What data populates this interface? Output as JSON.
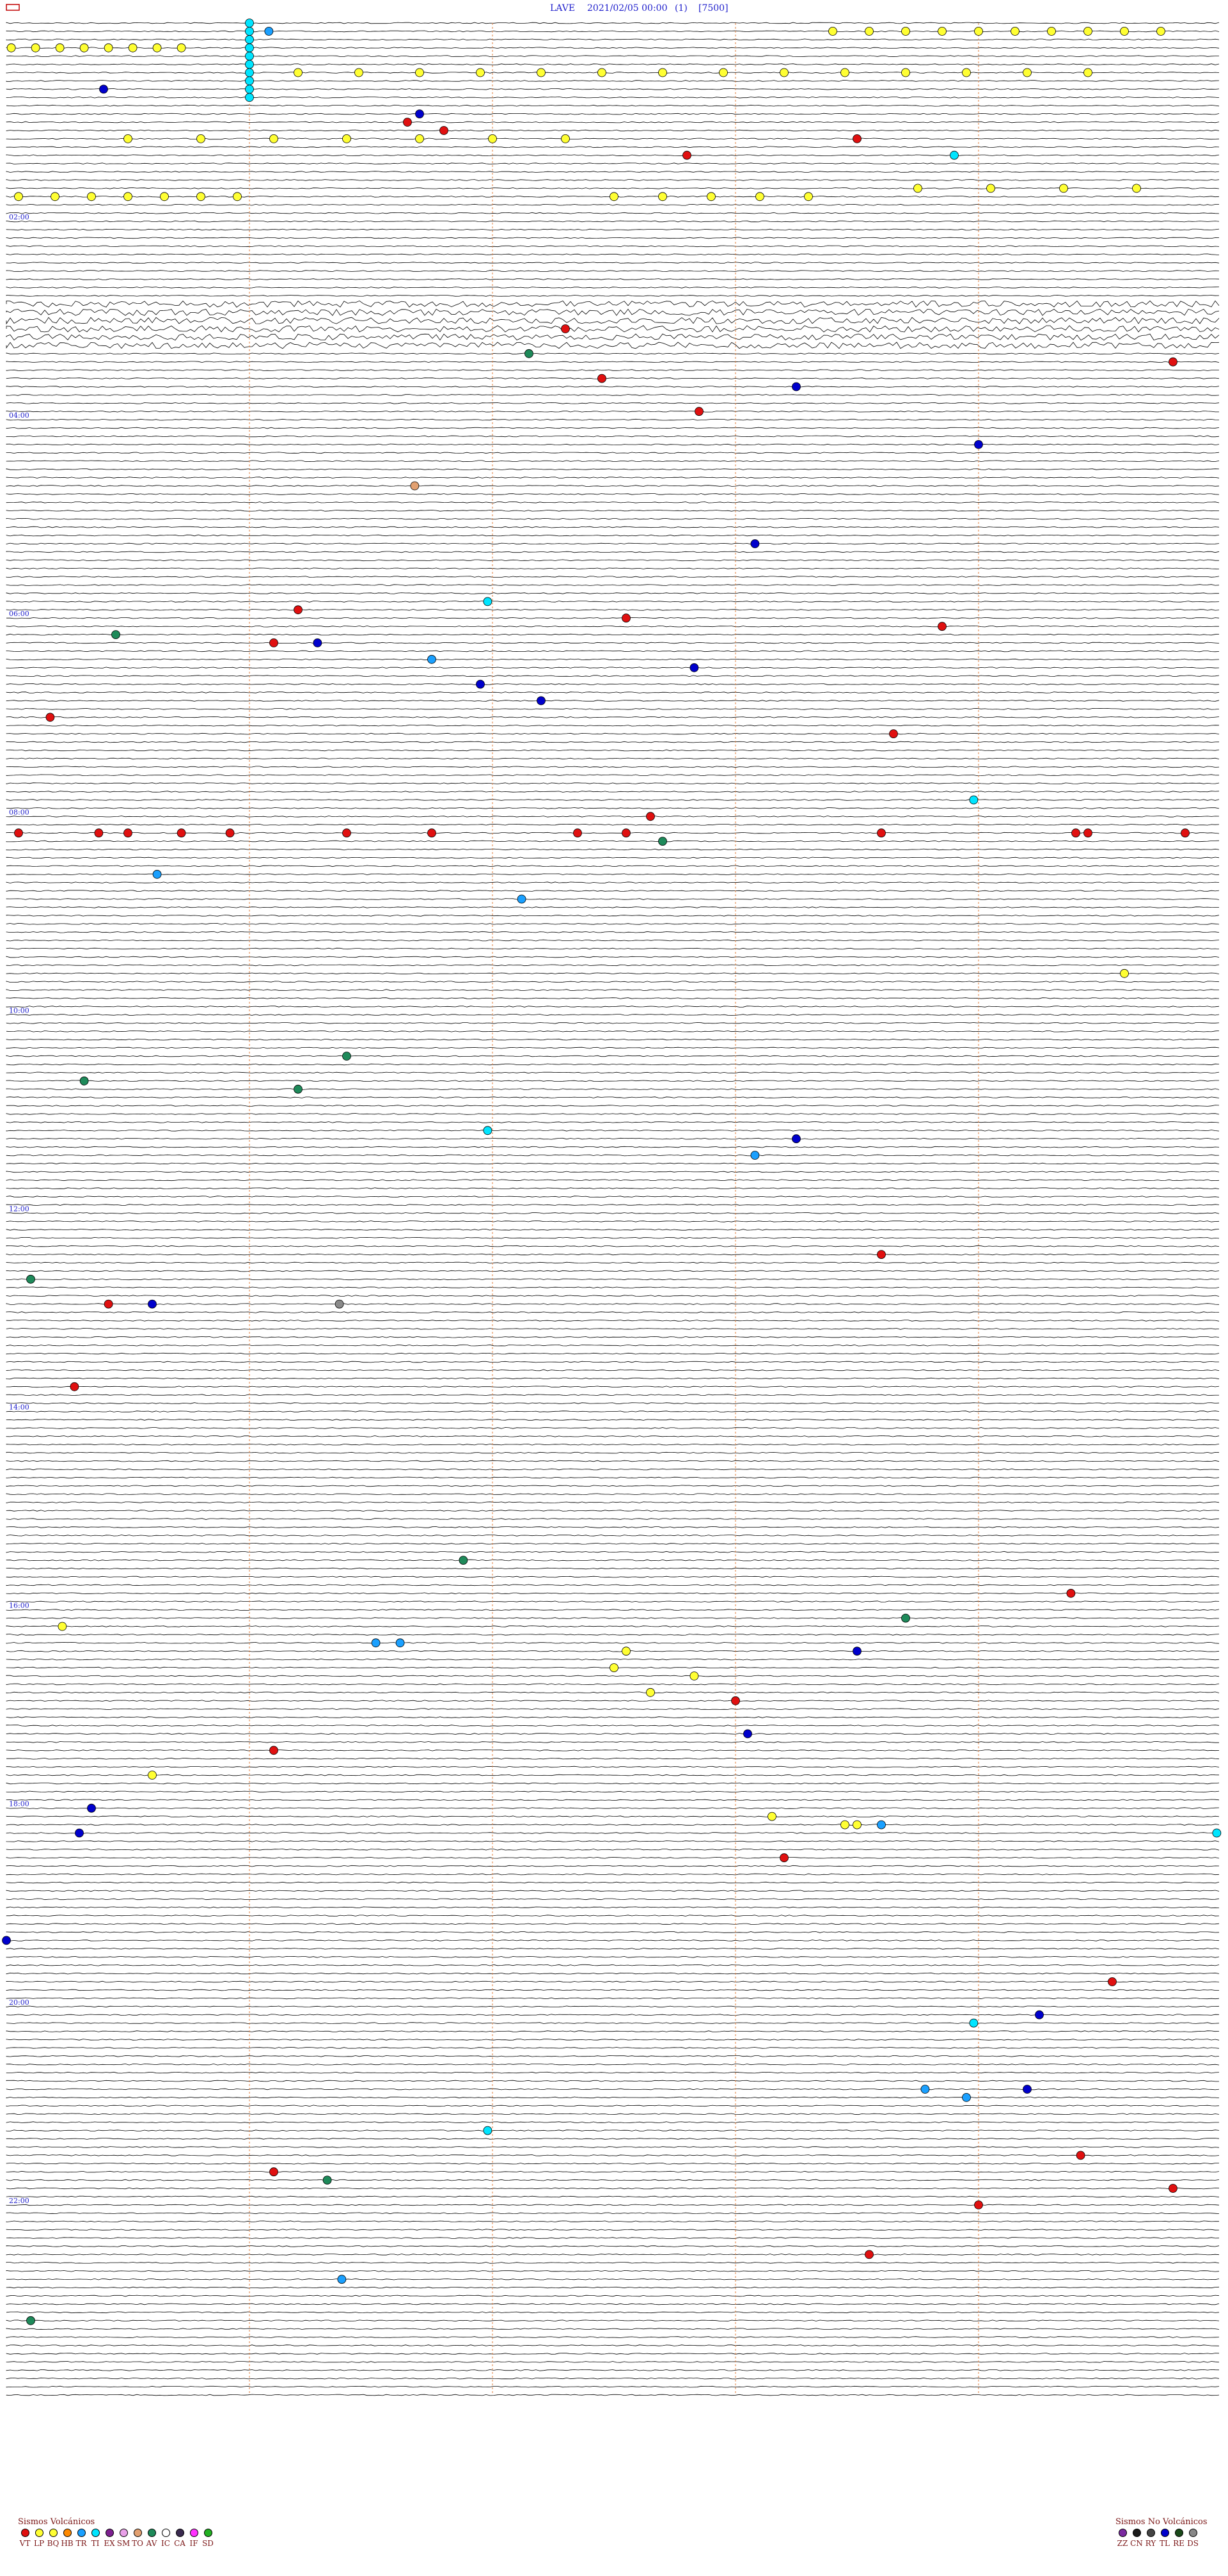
{
  "header": {
    "station": "LAVE",
    "datetime": "2021/02/05 00:00",
    "channel": "(1)",
    "scale": "[7500]"
  },
  "chart_data": {
    "type": "scatter",
    "kind": "helicorder",
    "total_traces": 288,
    "minutes_per_trace": 5,
    "hour_labels": [
      "02:00",
      "04:00",
      "06:00",
      "08:00",
      "10:00",
      "12:00",
      "14:00",
      "16:00",
      "18:00",
      "20:00",
      "22:00"
    ],
    "hour_label_traces": [
      24,
      48,
      72,
      96,
      120,
      144,
      168,
      192,
      216,
      240,
      264
    ],
    "event_types": {
      "VT": "#e01010",
      "LP": "#ffff33",
      "BQ": "#ffff33",
      "HB": "#ff8a00",
      "TR": "#1aa0ff",
      "TI": "#00e5ff",
      "EX": "#7d2090",
      "SM": "#e8a0e8",
      "TO": "#e2a070",
      "AV": "#1e8a5a",
      "IC": "#ffffff",
      "CA": "#3a2a50",
      "IF": "#ff33ff",
      "SD": "#22b022",
      "ZZ": "#7a2aa0",
      "CN": "#1a1a1a",
      "RY": "#444444",
      "TL": "#0000cc",
      "RE": "#1a4a1a",
      "DS": "#888888",
      "GRAY": "#8a8a8a",
      "BLUE": "#0000cc"
    },
    "events": [
      {
        "trace": 0,
        "minute": 1.0,
        "type": "TI"
      },
      {
        "trace": 1,
        "minute": 1.0,
        "type": "TI"
      },
      {
        "trace": 2,
        "minute": 1.0,
        "type": "TI"
      },
      {
        "trace": 3,
        "minute": 1.0,
        "type": "TI"
      },
      {
        "trace": 4,
        "minute": 1.0,
        "type": "TI"
      },
      {
        "trace": 5,
        "minute": 1.0,
        "type": "TI"
      },
      {
        "trace": 6,
        "minute": 1.0,
        "type": "TI"
      },
      {
        "trace": 7,
        "minute": 1.0,
        "type": "TI"
      },
      {
        "trace": 8,
        "minute": 1.0,
        "type": "TI"
      },
      {
        "trace": 9,
        "minute": 1.0,
        "type": "TI"
      },
      {
        "trace": 1,
        "minute": 3.4,
        "type": "LP"
      },
      {
        "trace": 1,
        "minute": 3.55,
        "type": "LP"
      },
      {
        "trace": 1,
        "minute": 3.7,
        "type": "LP"
      },
      {
        "trace": 1,
        "minute": 3.85,
        "type": "LP"
      },
      {
        "trace": 1,
        "minute": 4.0,
        "type": "LP"
      },
      {
        "trace": 1,
        "minute": 4.15,
        "type": "LP"
      },
      {
        "trace": 1,
        "minute": 4.3,
        "type": "LP"
      },
      {
        "trace": 1,
        "minute": 4.45,
        "type": "LP"
      },
      {
        "trace": 1,
        "minute": 4.6,
        "type": "LP"
      },
      {
        "trace": 1,
        "minute": 4.75,
        "type": "LP"
      },
      {
        "trace": 3,
        "minute": 0.02,
        "type": "LP"
      },
      {
        "trace": 3,
        "minute": 0.12,
        "type": "LP"
      },
      {
        "trace": 3,
        "minute": 0.22,
        "type": "LP"
      },
      {
        "trace": 3,
        "minute": 0.32,
        "type": "LP"
      },
      {
        "trace": 3,
        "minute": 0.42,
        "type": "LP"
      },
      {
        "trace": 3,
        "minute": 0.52,
        "type": "LP"
      },
      {
        "trace": 3,
        "minute": 0.62,
        "type": "LP"
      },
      {
        "trace": 3,
        "minute": 0.72,
        "type": "LP"
      },
      {
        "trace": 6,
        "minute": 1.2,
        "type": "LP"
      },
      {
        "trace": 6,
        "minute": 1.45,
        "type": "LP"
      },
      {
        "trace": 6,
        "minute": 1.7,
        "type": "LP"
      },
      {
        "trace": 6,
        "minute": 1.95,
        "type": "LP"
      },
      {
        "trace": 6,
        "minute": 2.2,
        "type": "LP"
      },
      {
        "trace": 6,
        "minute": 2.45,
        "type": "LP"
      },
      {
        "trace": 6,
        "minute": 2.7,
        "type": "LP"
      },
      {
        "trace": 6,
        "minute": 2.95,
        "type": "LP"
      },
      {
        "trace": 6,
        "minute": 3.2,
        "type": "LP"
      },
      {
        "trace": 6,
        "minute": 3.45,
        "type": "LP"
      },
      {
        "trace": 6,
        "minute": 3.7,
        "type": "LP"
      },
      {
        "trace": 6,
        "minute": 3.95,
        "type": "LP"
      },
      {
        "trace": 6,
        "minute": 4.2,
        "type": "LP"
      },
      {
        "trace": 6,
        "minute": 4.45,
        "type": "LP"
      },
      {
        "trace": 14,
        "minute": 0.5,
        "type": "LP"
      },
      {
        "trace": 14,
        "minute": 0.8,
        "type": "LP"
      },
      {
        "trace": 14,
        "minute": 1.1,
        "type": "LP"
      },
      {
        "trace": 14,
        "minute": 1.4,
        "type": "LP"
      },
      {
        "trace": 14,
        "minute": 1.7,
        "type": "LP"
      },
      {
        "trace": 14,
        "minute": 2.0,
        "type": "LP"
      },
      {
        "trace": 14,
        "minute": 2.3,
        "type": "LP"
      },
      {
        "trace": 21,
        "minute": 0.05,
        "type": "LP"
      },
      {
        "trace": 21,
        "minute": 0.2,
        "type": "LP"
      },
      {
        "trace": 21,
        "minute": 0.35,
        "type": "LP"
      },
      {
        "trace": 21,
        "minute": 0.5,
        "type": "LP"
      },
      {
        "trace": 21,
        "minute": 0.65,
        "type": "LP"
      },
      {
        "trace": 21,
        "minute": 0.8,
        "type": "LP"
      },
      {
        "trace": 21,
        "minute": 0.95,
        "type": "LP"
      },
      {
        "trace": 21,
        "minute": 2.5,
        "type": "LP"
      },
      {
        "trace": 21,
        "minute": 2.7,
        "type": "LP"
      },
      {
        "trace": 21,
        "minute": 2.9,
        "type": "LP"
      },
      {
        "trace": 21,
        "minute": 3.1,
        "type": "LP"
      },
      {
        "trace": 21,
        "minute": 3.3,
        "type": "LP"
      },
      {
        "trace": 20,
        "minute": 3.75,
        "type": "LP"
      },
      {
        "trace": 20,
        "minute": 4.05,
        "type": "LP"
      },
      {
        "trace": 20,
        "minute": 4.35,
        "type": "LP"
      },
      {
        "trace": 20,
        "minute": 4.65,
        "type": "LP"
      },
      {
        "trace": 1,
        "minute": 1.08,
        "type": "TR"
      },
      {
        "trace": 8,
        "minute": 0.4,
        "type": "BLUE"
      },
      {
        "trace": 11,
        "minute": 1.7,
        "type": "BLUE"
      },
      {
        "trace": 12,
        "minute": 1.65,
        "type": "VT"
      },
      {
        "trace": 13,
        "minute": 1.8,
        "type": "VT"
      },
      {
        "trace": 14,
        "minute": 3.5,
        "type": "VT"
      },
      {
        "trace": 16,
        "minute": 3.9,
        "type": "TI"
      },
      {
        "trace": 16,
        "minute": 2.8,
        "type": "VT"
      },
      {
        "trace": 37,
        "minute": 2.3,
        "type": "VT"
      },
      {
        "trace": 40,
        "minute": 2.15,
        "type": "AV"
      },
      {
        "trace": 41,
        "minute": 4.8,
        "type": "VT"
      },
      {
        "trace": 43,
        "minute": 2.45,
        "type": "VT"
      },
      {
        "trace": 44,
        "minute": 3.25,
        "type": "BLUE"
      },
      {
        "trace": 47,
        "minute": 2.85,
        "type": "VT"
      },
      {
        "trace": 51,
        "minute": 4.0,
        "type": "BLUE"
      },
      {
        "trace": 56,
        "minute": 1.68,
        "type": "TO"
      },
      {
        "trace": 63,
        "minute": 3.08,
        "type": "BLUE"
      },
      {
        "trace": 70,
        "minute": 1.98,
        "type": "TI"
      },
      {
        "trace": 71,
        "minute": 1.2,
        "type": "VT"
      },
      {
        "trace": 72,
        "minute": 2.55,
        "type": "VT"
      },
      {
        "trace": 73,
        "minute": 3.85,
        "type": "VT"
      },
      {
        "trace": 74,
        "minute": 0.45,
        "type": "AV"
      },
      {
        "trace": 75,
        "minute": 1.1,
        "type": "VT"
      },
      {
        "trace": 75,
        "minute": 1.28,
        "type": "BLUE"
      },
      {
        "trace": 77,
        "minute": 1.75,
        "type": "TR"
      },
      {
        "trace": 78,
        "minute": 2.83,
        "type": "BLUE"
      },
      {
        "trace": 80,
        "minute": 1.95,
        "type": "BLUE"
      },
      {
        "trace": 82,
        "minute": 2.2,
        "type": "BLUE"
      },
      {
        "trace": 84,
        "minute": 0.18,
        "type": "VT"
      },
      {
        "trace": 86,
        "minute": 3.65,
        "type": "VT"
      },
      {
        "trace": 94,
        "minute": 3.98,
        "type": "TI"
      },
      {
        "trace": 96,
        "minute": 2.65,
        "type": "VT"
      },
      {
        "trace": 98,
        "minute": 0.05,
        "type": "VT"
      },
      {
        "trace": 98,
        "minute": 0.38,
        "type": "VT"
      },
      {
        "trace": 98,
        "minute": 0.5,
        "type": "VT"
      },
      {
        "trace": 98,
        "minute": 0.72,
        "type": "VT"
      },
      {
        "trace": 98,
        "minute": 0.92,
        "type": "VT"
      },
      {
        "trace": 98,
        "minute": 1.4,
        "type": "VT"
      },
      {
        "trace": 98,
        "minute": 1.75,
        "type": "VT"
      },
      {
        "trace": 98,
        "minute": 2.35,
        "type": "VT"
      },
      {
        "trace": 98,
        "minute": 2.55,
        "type": "VT"
      },
      {
        "trace": 98,
        "minute": 3.6,
        "type": "VT"
      },
      {
        "trace": 98,
        "minute": 4.4,
        "type": "VT"
      },
      {
        "trace": 98,
        "minute": 4.45,
        "type": "VT"
      },
      {
        "trace": 98,
        "minute": 4.85,
        "type": "VT"
      },
      {
        "trace": 99,
        "minute": 2.7,
        "type": "AV"
      },
      {
        "trace": 103,
        "minute": 0.62,
        "type": "TR"
      },
      {
        "trace": 106,
        "minute": 2.12,
        "type": "TR"
      },
      {
        "trace": 115,
        "minute": 4.6,
        "type": "LP"
      },
      {
        "trace": 125,
        "minute": 1.4,
        "type": "AV"
      },
      {
        "trace": 128,
        "minute": 0.32,
        "type": "AV"
      },
      {
        "trace": 129,
        "minute": 1.2,
        "type": "AV"
      },
      {
        "trace": 134,
        "minute": 1.98,
        "type": "TI"
      },
      {
        "trace": 135,
        "minute": 3.25,
        "type": "BLUE"
      },
      {
        "trace": 137,
        "minute": 3.08,
        "type": "TR"
      },
      {
        "trace": 149,
        "minute": 3.6,
        "type": "VT"
      },
      {
        "trace": 152,
        "minute": 0.1,
        "type": "AV"
      },
      {
        "trace": 155,
        "minute": 0.6,
        "type": "BLUE"
      },
      {
        "trace": 155,
        "minute": 0.42,
        "type": "VT"
      },
      {
        "trace": 155,
        "minute": 1.37,
        "type": "GRAY"
      },
      {
        "trace": 165,
        "minute": 0.28,
        "type": "VT"
      },
      {
        "trace": 186,
        "minute": 1.88,
        "type": "AV"
      },
      {
        "trace": 190,
        "minute": 4.38,
        "type": "VT"
      },
      {
        "trace": 193,
        "minute": 3.7,
        "type": "AV"
      },
      {
        "trace": 194,
        "minute": 0.23,
        "type": "LP"
      },
      {
        "trace": 196,
        "minute": 1.52,
        "type": "TR"
      },
      {
        "trace": 196,
        "minute": 1.62,
        "type": "TR"
      },
      {
        "trace": 197,
        "minute": 2.55,
        "type": "LP"
      },
      {
        "trace": 197,
        "minute": 3.5,
        "type": "BLUE"
      },
      {
        "trace": 199,
        "minute": 2.5,
        "type": "LP"
      },
      {
        "trace": 200,
        "minute": 2.83,
        "type": "LP"
      },
      {
        "trace": 202,
        "minute": 2.65,
        "type": "LP"
      },
      {
        "trace": 203,
        "minute": 3.0,
        "type": "VT"
      },
      {
        "trace": 207,
        "minute": 3.05,
        "type": "BLUE"
      },
      {
        "trace": 209,
        "minute": 1.1,
        "type": "VT"
      },
      {
        "trace": 212,
        "minute": 0.6,
        "type": "LP"
      },
      {
        "trace": 216,
        "minute": 0.35,
        "type": "BLUE"
      },
      {
        "trace": 217,
        "minute": 3.15,
        "type": "LP"
      },
      {
        "trace": 218,
        "minute": 3.5,
        "type": "LP"
      },
      {
        "trace": 218,
        "minute": 3.6,
        "type": "TR"
      },
      {
        "trace": 218,
        "minute": 3.45,
        "type": "LP"
      },
      {
        "trace": 219,
        "minute": 0.3,
        "type": "BLUE"
      },
      {
        "trace": 219,
        "minute": 4.98,
        "type": "TI"
      },
      {
        "trace": 222,
        "minute": 3.2,
        "type": "VT"
      },
      {
        "trace": 237,
        "minute": 4.55,
        "type": "VT"
      },
      {
        "trace": 241,
        "minute": 4.25,
        "type": "BLUE"
      },
      {
        "trace": 242,
        "minute": 3.98,
        "type": "TI"
      },
      {
        "trace": 250,
        "minute": 4.2,
        "type": "BLUE"
      },
      {
        "trace": 250,
        "minute": 3.78,
        "type": "TR"
      },
      {
        "trace": 251,
        "minute": 3.95,
        "type": "TR"
      },
      {
        "trace": 255,
        "minute": 1.98,
        "type": "TI"
      },
      {
        "trace": 260,
        "minute": 1.1,
        "type": "VT"
      },
      {
        "trace": 261,
        "minute": 1.32,
        "type": "AV"
      },
      {
        "trace": 258,
        "minute": 4.42,
        "type": "VT"
      },
      {
        "trace": 262,
        "minute": 4.8,
        "type": "VT"
      },
      {
        "trace": 264,
        "minute": 4.0,
        "type": "VT"
      },
      {
        "trace": 270,
        "minute": 3.55,
        "type": "VT"
      },
      {
        "trace": 273,
        "minute": 1.38,
        "type": "TR"
      },
      {
        "trace": 278,
        "minute": 0.1,
        "type": "AV"
      },
      {
        "trace": 232,
        "minute": 0.0,
        "type": "BLUE"
      }
    ]
  },
  "legend": {
    "volcanic": {
      "title": "Sismos Volcánicos",
      "items": [
        {
          "code": "VT",
          "color": "#e01010"
        },
        {
          "code": "LP",
          "color": "#ffff33"
        },
        {
          "code": "BQ",
          "color": "#ffff33"
        },
        {
          "code": "HB",
          "color": "#ff8a00"
        },
        {
          "code": "TR",
          "color": "#1aa0ff"
        },
        {
          "code": "TI",
          "color": "#00e5ff"
        },
        {
          "code": "EX",
          "color": "#7d2090"
        },
        {
          "code": "SM",
          "color": "#e8a0e8"
        },
        {
          "code": "TO",
          "color": "#e2a070"
        },
        {
          "code": "AV",
          "color": "#1e8a5a"
        },
        {
          "code": "IC",
          "color": "#ffffff"
        },
        {
          "code": "CA",
          "color": "#3a2a50"
        },
        {
          "code": "IF",
          "color": "#ff33ff"
        },
        {
          "code": "SD",
          "color": "#22b022"
        }
      ]
    },
    "nonvolcanic": {
      "title": "Sismos No Volcánicos",
      "items": [
        {
          "code": "ZZ",
          "color": "#7a2aa0"
        },
        {
          "code": "CN",
          "color": "#1a1a1a"
        },
        {
          "code": "RY",
          "color": "#444444"
        },
        {
          "code": "TL",
          "color": "#0000cc"
        },
        {
          "code": "RE",
          "color": "#1a4a1a"
        },
        {
          "code": "DS",
          "color": "#888888"
        }
      ]
    }
  }
}
